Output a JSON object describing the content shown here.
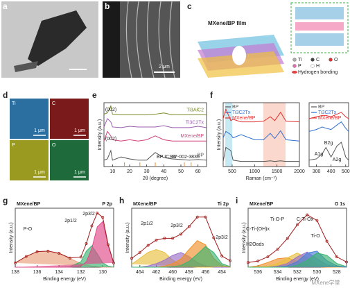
{
  "figure": {
    "panel_labels": [
      "a",
      "b",
      "c",
      "d",
      "e",
      "f",
      "g",
      "h",
      "i"
    ],
    "b_scale": "2 μm",
    "c_title": "MXene/BP film",
    "c_legend": [
      "Ti",
      "C",
      "O",
      "P",
      "H",
      "Hydrogen bonding"
    ],
    "d_maps": [
      "Ti",
      "C",
      "P",
      "O"
    ],
    "d_scale": "1 μm",
    "watermark": "MXene学堂"
  },
  "chart_data": [
    {
      "type": "line",
      "xlabel": "2θ (degree)",
      "ylabel": "Intensity (a.u.)",
      "xlim": [
        5,
        65
      ],
      "ylim": [
        0,
        100
      ],
      "xticks": [
        10,
        20,
        30,
        40,
        50,
        60
      ],
      "x": [
        5,
        7,
        9,
        10,
        15,
        20,
        25,
        30,
        35,
        40,
        45,
        50,
        55,
        60,
        65
      ],
      "series_labels": true,
      "series": [
        {
          "name": "Ti3AlC2",
          "color": "#7a8a2a",
          "values": [
            82,
            84,
            95,
            82,
            81,
            81,
            81,
            81,
            82,
            84,
            81,
            81,
            81,
            81,
            81
          ]
        },
        {
          "name": "Ti3C2Tx",
          "color": "#9a5db0",
          "values": [
            62,
            75,
            70,
            62,
            61,
            63,
            62,
            62,
            62,
            64,
            61,
            61,
            61,
            63,
            61
          ]
        },
        {
          "name": "MXene/BP",
          "color": "#d0407a",
          "values": [
            40,
            55,
            48,
            42,
            40,
            42,
            40,
            42,
            48,
            42,
            40,
            40,
            40,
            40,
            40
          ]
        },
        {
          "name": "BP",
          "color": "#555555",
          "values": [
            10,
            12,
            25,
            10,
            15,
            12,
            10,
            10,
            22,
            14,
            12,
            11,
            10,
            11,
            10
          ]
        }
      ],
      "ref_x": [
        17,
        26,
        35,
        52,
        56
      ],
      "ref_color": "#f08a24",
      "annotations": [
        "(002)",
        "(002)",
        "BP ICSD",
        "97-002-3836"
      ]
    },
    {
      "type": "line",
      "xlabel": "Raman (cm⁻¹)",
      "ylabel": "Intensity (a.u.)",
      "xlim": [
        300,
        2000
      ],
      "ylim": [
        0,
        100
      ],
      "xticks": [
        500,
        1000,
        1500,
        2000
      ],
      "x": [
        300,
        360,
        470,
        520,
        700,
        1000,
        1200,
        1350,
        1450,
        1580,
        1700,
        2000
      ],
      "legend": "upper left",
      "series": [
        {
          "name": "BP",
          "color": "#555555",
          "values": [
            8,
            30,
            25,
            10,
            8,
            8,
            8,
            9,
            8,
            9,
            8,
            8
          ]
        },
        {
          "name": "Ti3C2Tx",
          "color": "#2f6fd0",
          "values": [
            45,
            55,
            50,
            45,
            50,
            42,
            42,
            52,
            44,
            56,
            42,
            40
          ]
        },
        {
          "name": "MXene/BP",
          "color": "#e03030",
          "values": [
            75,
            90,
            72,
            74,
            70,
            70,
            71,
            78,
            72,
            85,
            71,
            70
          ]
        }
      ]
    },
    {
      "type": "line",
      "xlim": [
        250,
        520
      ],
      "ylim": [
        0,
        100
      ],
      "xticks": [
        300,
        400,
        500
      ],
      "x": [
        250,
        300,
        340,
        365,
        400,
        440,
        470,
        500,
        520
      ],
      "legend": "upper left",
      "series": [
        {
          "name": "BP",
          "color": "#555555",
          "values": [
            10,
            12,
            20,
            30,
            15,
            32,
            38,
            15,
            10
          ]
        },
        {
          "name": "Ti3C2Tx",
          "color": "#2f6fd0",
          "values": [
            55,
            58,
            62,
            60,
            58,
            65,
            70,
            60,
            55
          ]
        },
        {
          "name": "MXene/BP",
          "color": "#e03030",
          "values": [
            75,
            78,
            80,
            80,
            78,
            82,
            85,
            78,
            75
          ]
        }
      ],
      "annotations": [
        "A1g",
        "B2g",
        "A2g"
      ]
    },
    {
      "type": "line",
      "title": "MXene/BP",
      "subtitle": "P 2p",
      "xlabel": "Binding energy (eV)",
      "ylabel": "Intensity (a.u.)",
      "xlim": [
        138,
        129
      ],
      "ylim": [
        0,
        110
      ],
      "xticks": [
        138,
        136,
        134,
        132,
        130
      ],
      "x": [
        138,
        137,
        136,
        135,
        134,
        133,
        132,
        131.5,
        131,
        130.5,
        130,
        129.5,
        129
      ],
      "series": [
        {
          "color": "#e8a07a",
          "fill": true,
          "values": [
            8,
            20,
            29,
            30,
            26,
            16,
            7,
            4,
            2,
            1,
            0,
            0,
            0
          ]
        },
        {
          "color": "#3cb371",
          "fill": true,
          "values": [
            0,
            0,
            0,
            0,
            0,
            1,
            10,
            30,
            40,
            25,
            8,
            2,
            0
          ]
        },
        {
          "color": "#e04a8a",
          "fill": true,
          "values": [
            0,
            0,
            0,
            0,
            0,
            0,
            2,
            10,
            35,
            75,
            85,
            40,
            8
          ]
        },
        {
          "color": "#a01818",
          "markers": true,
          "values": [
            8,
            20,
            29,
            30,
            26,
            17,
            19,
            44,
            77,
            101,
            93,
            42,
            8
          ]
        }
      ],
      "annotations": [
        "P-O",
        "2p1/2",
        "2p3/2"
      ]
    },
    {
      "type": "line",
      "title": "MXene/BP",
      "subtitle": "Ti 2p",
      "xlabel": "Binding energy (eV)",
      "ylabel": "Intensity (a.u.)",
      "xlim": [
        465,
        453
      ],
      "ylim": [
        0,
        100
      ],
      "xticks": [
        464,
        462,
        460,
        458,
        456,
        454
      ],
      "x": [
        465,
        464,
        463,
        462,
        461,
        460,
        459,
        458,
        457,
        456,
        455,
        454,
        453
      ],
      "series": [
        {
          "color": "#e8c040",
          "fill": true,
          "values": [
            5,
            15,
            25,
            30,
            25,
            12,
            4,
            1,
            0,
            0,
            0,
            0,
            0
          ]
        },
        {
          "color": "#9a70c8",
          "fill": true,
          "values": [
            0,
            0,
            2,
            6,
            12,
            20,
            25,
            18,
            8,
            2,
            0,
            0,
            0
          ]
        },
        {
          "color": "#f0902a",
          "fill": true,
          "values": [
            0,
            0,
            0,
            0,
            2,
            6,
            14,
            30,
            45,
            38,
            15,
            3,
            0
          ]
        },
        {
          "color": "#3cb371",
          "fill": true,
          "values": [
            0,
            0,
            0,
            0,
            0,
            1,
            3,
            10,
            22,
            35,
            25,
            6,
            1
          ]
        },
        {
          "color": "#a01818",
          "markers": true,
          "values": [
            15,
            25,
            37,
            46,
            49,
            49,
            56,
            69,
            85,
            85,
            50,
            19,
            11
          ]
        }
      ],
      "annotations": [
        "2p1/2",
        "2p3/2",
        "2p3/2"
      ]
    },
    {
      "type": "line",
      "title": "MXene/BP",
      "subtitle": "O 1s",
      "xlabel": "Binding energy (eV)",
      "ylabel": "Intensity (a.u.)",
      "xlim": [
        537,
        527
      ],
      "ylim": [
        0,
        125
      ],
      "xticks": [
        536,
        534,
        532,
        530,
        528
      ],
      "x": [
        537,
        536,
        535,
        534,
        533,
        532,
        531,
        530,
        529,
        528,
        527
      ],
      "series": [
        {
          "color": "#f0902a",
          "fill": true,
          "values": [
            0,
            3,
            10,
            18,
            20,
            12,
            4,
            1,
            0,
            0,
            0
          ]
        },
        {
          "color": "#e8c040",
          "fill": true,
          "values": [
            0,
            0,
            2,
            8,
            20,
            30,
            20,
            6,
            1,
            0,
            0
          ]
        },
        {
          "color": "#9a70c8",
          "fill": true,
          "values": [
            0,
            0,
            0,
            2,
            8,
            22,
            32,
            18,
            5,
            1,
            0
          ]
        },
        {
          "color": "#4a80d8",
          "fill": true,
          "values": [
            0,
            0,
            0,
            0,
            3,
            12,
            30,
            34,
            14,
            3,
            0
          ]
        },
        {
          "color": "#3cb371",
          "fill": true,
          "values": [
            0,
            0,
            0,
            0,
            0,
            4,
            15,
            30,
            25,
            8,
            1
          ]
        },
        {
          "color": "#a01818",
          "markers": true,
          "values": [
            10,
            13,
            22,
            38,
            61,
            90,
            111,
            99,
            55,
            22,
            11
          ]
        }
      ],
      "annotations": [
        "Ti-O-P",
        "C-Ti-(OH)x",
        "C-Ti-Ox",
        "Ti-O",
        "H2Oads"
      ]
    }
  ]
}
